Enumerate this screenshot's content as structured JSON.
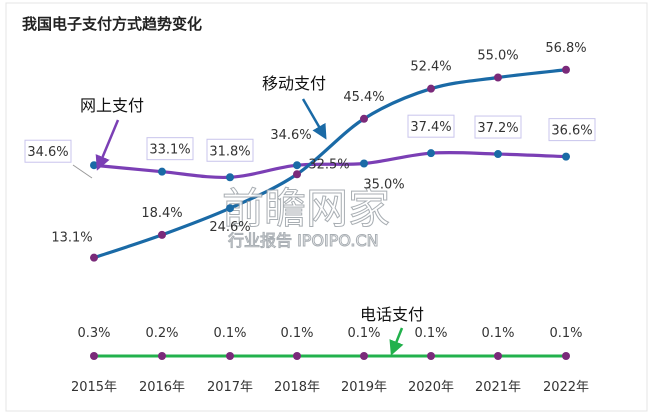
{
  "chart_data": {
    "type": "line",
    "title": "我国电子支付方式趋势变化",
    "categories": [
      "2015年",
      "2016年",
      "2017年",
      "2018年",
      "2019年",
      "2020年",
      "2021年",
      "2022年"
    ],
    "series": [
      {
        "name": "移动支付",
        "values": [
          13.1,
          18.4,
          24.6,
          32.5,
          45.4,
          52.4,
          55.0,
          56.8
        ],
        "labels": [
          "13.1%",
          "18.4%",
          "24.6%",
          "32.5%",
          "45.4%",
          "52.4%",
          "55.0%",
          "56.8%"
        ],
        "color": "#1a6aa6"
      },
      {
        "name": "网上支付",
        "values": [
          34.6,
          33.1,
          31.8,
          34.6,
          35.0,
          37.4,
          37.2,
          36.6
        ],
        "labels": [
          "34.6%",
          "33.1%",
          "31.8%",
          "34.6%",
          "35.0%",
          "37.4%",
          "37.2%",
          "36.6%"
        ],
        "color": "#7b3fb5"
      },
      {
        "name": "电话支付",
        "values": [
          0.3,
          0.2,
          0.1,
          0.1,
          0.1,
          0.1,
          0.1,
          0.1
        ],
        "labels": [
          "0.3%",
          "0.2%",
          "0.1%",
          "0.1%",
          "0.1%",
          "0.1%",
          "0.1%",
          "0.1%"
        ],
        "color": "#22b14c"
      }
    ],
    "marker_color": "#7a2a7a",
    "grid": false,
    "legend": "callouts"
  },
  "watermark": {
    "main": "前瞻网家",
    "sub": "行业报告 IPOIPO.CN"
  }
}
